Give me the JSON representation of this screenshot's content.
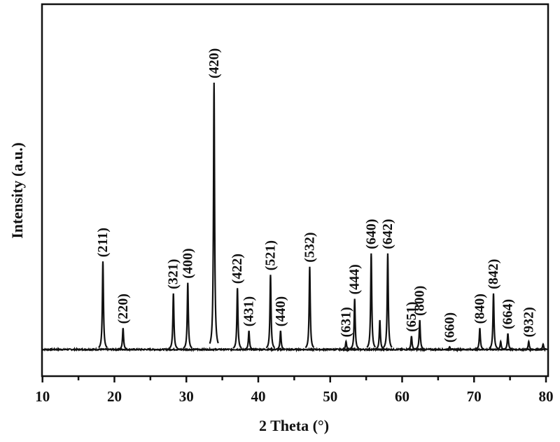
{
  "chart_data": {
    "type": "line",
    "title": "",
    "xlabel": "2 Theta (°)",
    "ylabel": "Intensity (a.u.)",
    "xlim": [
      10,
      80
    ],
    "ylim": [
      -10,
      129.4
    ],
    "xticks": [
      10,
      20,
      30,
      40,
      50,
      60,
      70,
      80
    ],
    "xtick_labels": [
      "10",
      "20",
      "30",
      "40",
      "50",
      "60",
      "70",
      "80"
    ],
    "grid": false,
    "legend": "none",
    "line_color": "#111111",
    "peaks": [
      {
        "two_theta": 18.4,
        "intensity": 33,
        "label": "(211)"
      },
      {
        "two_theta": 21.2,
        "intensity": 8,
        "label": "(220)"
      },
      {
        "two_theta": 28.2,
        "intensity": 21,
        "label": "(321)"
      },
      {
        "two_theta": 30.2,
        "intensity": 25,
        "label": "(400)"
      },
      {
        "two_theta": 33.85,
        "intensity": 100,
        "label": "(420)"
      },
      {
        "two_theta": 37.1,
        "intensity": 23,
        "label": "(422)"
      },
      {
        "two_theta": 38.7,
        "intensity": 7,
        "label": "(431)"
      },
      {
        "two_theta": 41.7,
        "intensity": 28,
        "label": "(521)"
      },
      {
        "two_theta": 43.1,
        "intensity": 7,
        "label": "(440)"
      },
      {
        "two_theta": 47.15,
        "intensity": 31,
        "label": "(532)"
      },
      {
        "two_theta": 52.2,
        "intensity": 3,
        "label": "(631)"
      },
      {
        "two_theta": 53.4,
        "intensity": 19,
        "label": "(444)"
      },
      {
        "two_theta": 55.7,
        "intensity": 36,
        "label": "(640)"
      },
      {
        "two_theta": 56.9,
        "intensity": 11,
        "label": ""
      },
      {
        "two_theta": 58.0,
        "intensity": 36,
        "label": "(642)"
      },
      {
        "two_theta": 61.3,
        "intensity": 5,
        "label": "(651)"
      },
      {
        "two_theta": 62.45,
        "intensity": 11,
        "label": "(800)"
      },
      {
        "two_theta": 66.6,
        "intensity": 1,
        "label": "(660)"
      },
      {
        "two_theta": 70.8,
        "intensity": 8,
        "label": "(840)"
      },
      {
        "two_theta": 72.7,
        "intensity": 21,
        "label": "(842)"
      },
      {
        "two_theta": 73.7,
        "intensity": 3,
        "label": ""
      },
      {
        "two_theta": 74.7,
        "intensity": 6,
        "label": "(664)"
      },
      {
        "two_theta": 77.6,
        "intensity": 3,
        "label": "(932)"
      },
      {
        "two_theta": 79.6,
        "intensity": 2,
        "label": ""
      }
    ]
  }
}
